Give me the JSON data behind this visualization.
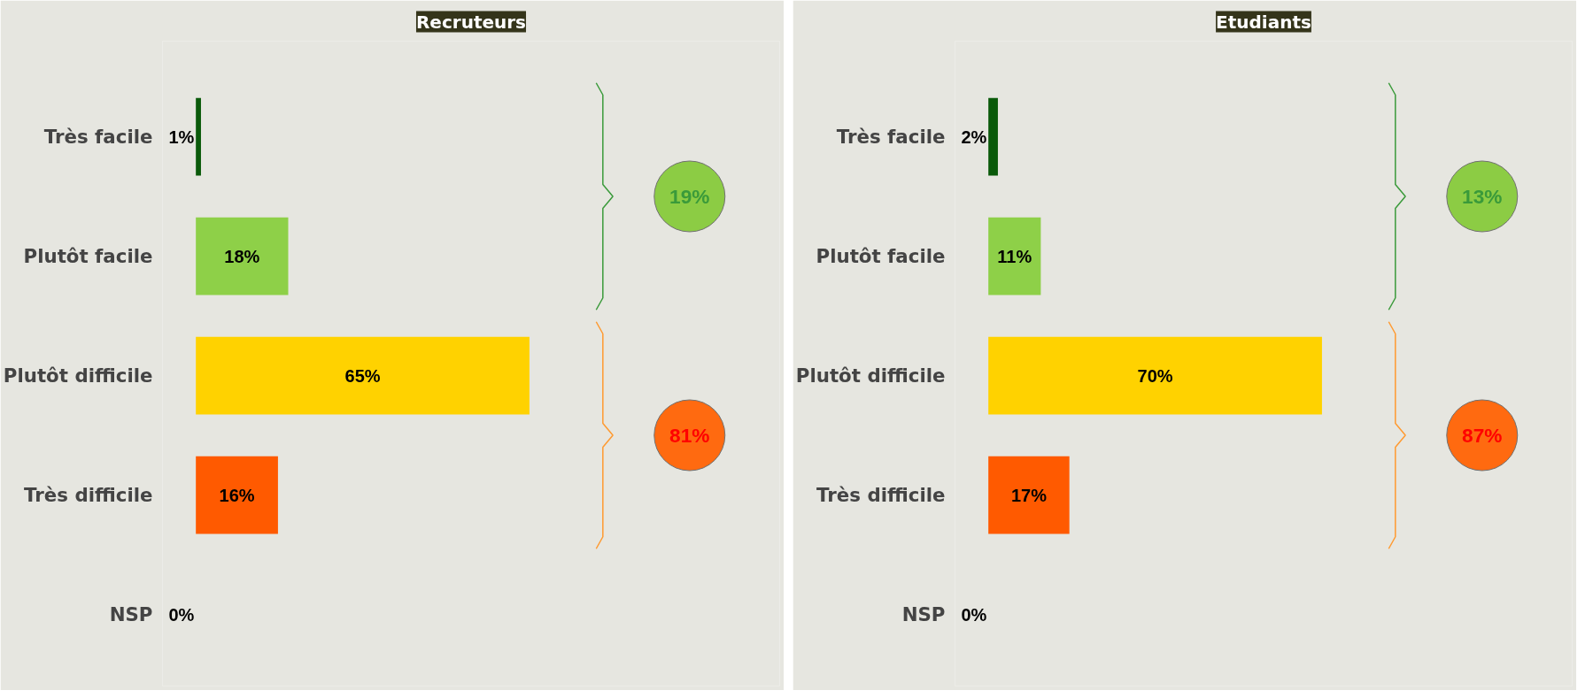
{
  "chart_data": [
    {
      "type": "bar",
      "orientation": "horizontal",
      "title": "Recruteurs",
      "categories": [
        "Très facile",
        "Plutôt facile",
        "Plutôt difficile",
        "Très difficile",
        "NSP"
      ],
      "values": [
        1,
        18,
        65,
        16,
        0
      ],
      "value_labels": [
        "1%",
        "18%",
        "65%",
        "16%",
        "0%"
      ],
      "colors": [
        "#0a5a0a",
        "#8ed048",
        "#ffd200",
        "#ff5a00",
        "#7f7f7f"
      ],
      "tick_labels": "y",
      "annotations": [
        "19%",
        "81%"
      ]
    },
    {
      "type": "bar",
      "orientation": "horizontal",
      "title": "Etudiants",
      "categories": [
        "Très facile",
        "Plutôt facile",
        "Plutôt difficile",
        "Très difficile",
        "NSP"
      ],
      "values": [
        2,
        11,
        70,
        17,
        0
      ],
      "value_labels": [
        "2%",
        "11%",
        "70%",
        "17%",
        "0%"
      ],
      "colors": [
        "#0a5a0a",
        "#8ed048",
        "#ffd200",
        "#ff5a00",
        "#7f7f7f"
      ],
      "tick_labels": "y",
      "annotations": [
        "13%",
        "87%"
      ]
    }
  ]
}
